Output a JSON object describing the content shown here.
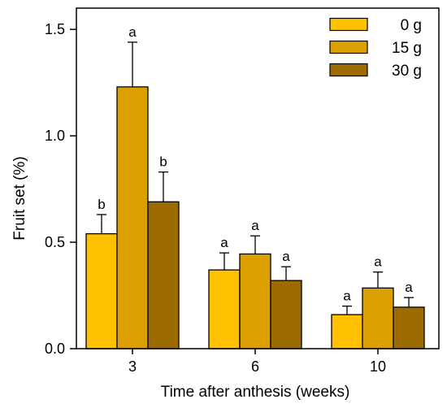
{
  "chart_data": {
    "type": "bar",
    "xlabel": "Time after anthesis (weeks)",
    "ylabel": "Fruit set (%)",
    "ylim": [
      0,
      1.6
    ],
    "yticks": [
      "0.0",
      "0.5",
      "1.0",
      "1.5"
    ],
    "categories": [
      "3",
      "6",
      "10"
    ],
    "legend_position": "top-right",
    "series": [
      {
        "name": "0 g",
        "color": "#FFC000",
        "values": [
          0.54,
          0.37,
          0.16
        ],
        "errors": [
          0.09,
          0.08,
          0.04
        ],
        "letters": [
          "b",
          "a",
          "a"
        ]
      },
      {
        "name": "15 g",
        "color": "#DBA000",
        "values": [
          1.23,
          0.445,
          0.285
        ],
        "errors": [
          0.21,
          0.085,
          0.075
        ],
        "letters": [
          "a",
          "a",
          "a"
        ]
      },
      {
        "name": "30 g",
        "color": "#9C6B00",
        "values": [
          0.69,
          0.32,
          0.195
        ],
        "errors": [
          0.14,
          0.065,
          0.045
        ],
        "letters": [
          "b",
          "a",
          "a"
        ]
      }
    ]
  }
}
